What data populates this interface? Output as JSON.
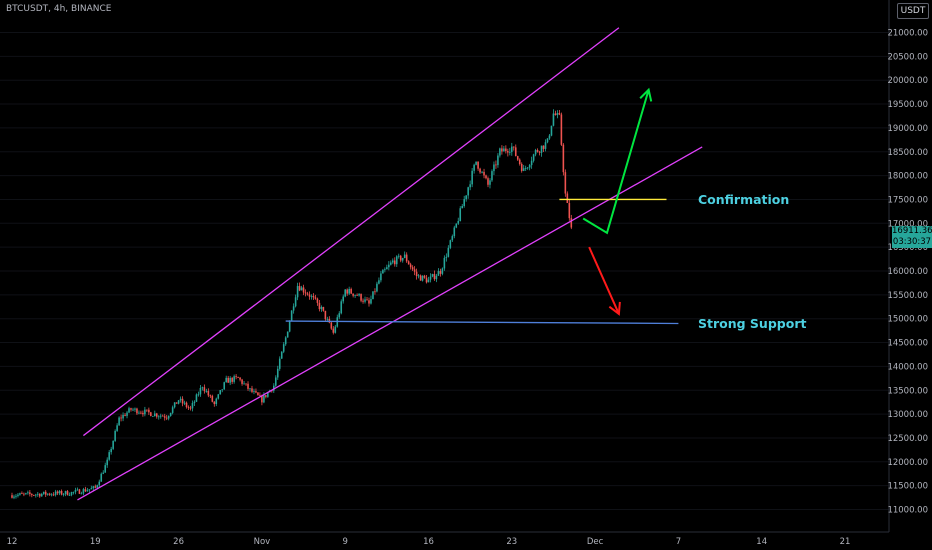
{
  "header": {
    "symbol_line": "BTCUSDT, 4h, BINANCE",
    "currency": "USDT"
  },
  "price_tags": {
    "last_price": "16911.36",
    "countdown": "03:30:37"
  },
  "colors": {
    "up": "#26a69a",
    "down": "#ef5350",
    "channel": "#e040fb",
    "confirmation": "#ffeb3b",
    "support": "#4f7fd9",
    "text_label": "#4dd0e1",
    "arrow_up": "#00e640",
    "arrow_down": "#ff1a1a"
  },
  "chart_data": {
    "type": "candlestick",
    "title": "BTCUSDT, 4h, BINANCE",
    "currency": "USDT",
    "ylim": [
      10700,
      21400
    ],
    "y_ticks": [
      11000,
      11500,
      12000,
      12500,
      13000,
      13500,
      14000,
      14500,
      15000,
      15500,
      16000,
      16500,
      17000,
      17500,
      18000,
      18500,
      19000,
      19500,
      20000,
      20500,
      21000
    ],
    "x_ticks": [
      "12",
      "19",
      "26",
      "Nov",
      "9",
      "16",
      "23",
      "Dec",
      "7",
      "14",
      "21"
    ],
    "last_price": 16911.36,
    "anchors": [
      {
        "day": 0,
        "price": 11300
      },
      {
        "day": 5,
        "price": 11350
      },
      {
        "day": 7,
        "price": 11450
      },
      {
        "day": 8,
        "price": 12000
      },
      {
        "day": 9,
        "price": 12900
      },
      {
        "day": 10,
        "price": 13100
      },
      {
        "day": 13,
        "price": 12950
      },
      {
        "day": 14,
        "price": 13300
      },
      {
        "day": 15,
        "price": 13100
      },
      {
        "day": 16,
        "price": 13600
      },
      {
        "day": 17,
        "price": 13200
      },
      {
        "day": 18,
        "price": 13700
      },
      {
        "day": 19,
        "price": 13750
      },
      {
        "day": 20,
        "price": 13500
      },
      {
        "day": 21,
        "price": 13300
      },
      {
        "day": 22,
        "price": 13600
      },
      {
        "day": 23,
        "price": 14600
      },
      {
        "day": 24,
        "price": 15700
      },
      {
        "day": 25,
        "price": 15500
      },
      {
        "day": 26,
        "price": 15200
      },
      {
        "day": 27,
        "price": 14700
      },
      {
        "day": 28,
        "price": 15600
      },
      {
        "day": 29,
        "price": 15500
      },
      {
        "day": 30,
        "price": 15300
      },
      {
        "day": 31,
        "price": 15900
      },
      {
        "day": 32,
        "price": 16200
      },
      {
        "day": 33,
        "price": 16300
      },
      {
        "day": 34,
        "price": 15900
      },
      {
        "day": 35,
        "price": 15800
      },
      {
        "day": 36,
        "price": 16000
      },
      {
        "day": 37,
        "price": 16700
      },
      {
        "day": 38,
        "price": 17500
      },
      {
        "day": 39,
        "price": 18300
      },
      {
        "day": 40,
        "price": 17800
      },
      {
        "day": 41,
        "price": 18500
      },
      {
        "day": 42,
        "price": 18600
      },
      {
        "day": 43,
        "price": 18100
      },
      {
        "day": 44,
        "price": 18500
      },
      {
        "day": 45,
        "price": 18700
      },
      {
        "day": 45.5,
        "price": 19300
      },
      {
        "day": 46,
        "price": 19200
      },
      {
        "day": 46.5,
        "price": 17600
      },
      {
        "day": 47,
        "price": 16900
      }
    ],
    "trendlines": [
      {
        "name": "channel-upper",
        "from": {
          "day": 6,
          "price": 12550
        },
        "to": {
          "day": 51,
          "price": 21100
        }
      },
      {
        "name": "channel-lower",
        "from": {
          "day": 5.5,
          "price": 11200
        },
        "to": {
          "day": 58,
          "price": 18600
        }
      },
      {
        "name": "confirmation-level",
        "from": {
          "day": 46,
          "price": 17500
        },
        "to": {
          "day": 55,
          "price": 17500
        }
      },
      {
        "name": "strong-support",
        "from": {
          "day": 23,
          "price": 14950
        },
        "to": {
          "day": 56,
          "price": 14900
        }
      }
    ],
    "annotations": [
      {
        "text": "Confirmation",
        "price": 17500
      },
      {
        "text": "Strong Support",
        "price": 14900
      }
    ],
    "projections": [
      {
        "name": "bullish-path",
        "points": [
          {
            "day": 48,
            "price": 17100
          },
          {
            "day": 50,
            "price": 16800
          },
          {
            "day": 53.5,
            "price": 19800
          }
        ]
      },
      {
        "name": "bearish-path",
        "points": [
          {
            "day": 48.5,
            "price": 16500
          },
          {
            "day": 51,
            "price": 15100
          }
        ]
      }
    ]
  }
}
